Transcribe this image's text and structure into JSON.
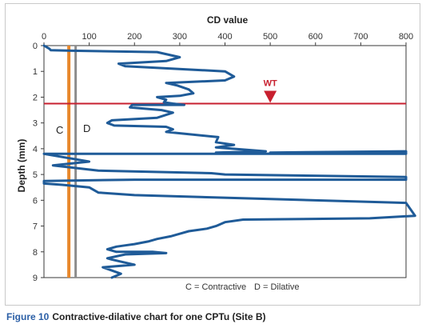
{
  "chart_data": {
    "type": "line",
    "title": "",
    "xlabel": "CD value",
    "ylabel": "Depth (mm)",
    "xlim": [
      0,
      800
    ],
    "ylim": [
      0,
      9
    ],
    "y_inverted": true,
    "x_axis_position": "top",
    "x_ticks": [
      "0",
      "100",
      "200",
      "300",
      "400",
      "500",
      "600",
      "700",
      "800"
    ],
    "y_ticks": [
      "0",
      "1",
      "2",
      "3",
      "4",
      "5",
      "6",
      "7",
      "8",
      "9"
    ],
    "grid": false,
    "series": [
      {
        "color": "#1f5b98",
        "x": [
          0,
          5,
          12,
          15,
          60,
          250,
          300,
          270,
          165,
          180,
          290,
          400,
          420,
          400,
          270,
          295,
          320,
          330,
          300,
          250,
          270,
          265,
          285,
          310,
          195,
          190,
          260,
          285,
          250,
          150,
          140,
          155,
          270,
          285,
          270,
          385,
          380,
          420,
          380,
          490,
          380,
          510,
          500,
          800,
          800,
          0,
          100,
          20,
          120,
          370,
          400,
          800,
          800,
          200,
          0,
          0,
          40,
          100,
          120,
          200,
          800,
          820,
          720,
          440,
          400,
          380,
          360,
          320,
          300,
          280,
          250,
          230,
          200,
          180,
          160,
          140,
          160,
          240,
          270,
          180,
          140,
          150,
          200,
          130,
          170,
          150
        ],
        "y": [
          0,
          0.05,
          0.12,
          0.18,
          0.2,
          0.25,
          0.45,
          0.6,
          0.7,
          0.8,
          0.9,
          1.0,
          1.2,
          1.35,
          1.45,
          1.55,
          1.7,
          1.85,
          1.95,
          2.0,
          2.1,
          2.2,
          2.25,
          2.3,
          2.3,
          2.4,
          2.5,
          2.6,
          2.8,
          2.9,
          3.0,
          3.1,
          3.15,
          3.25,
          3.35,
          3.55,
          3.75,
          3.85,
          3.95,
          4.1,
          4.15,
          4.2,
          4.15,
          4.1,
          4.2,
          4.2,
          4.5,
          4.65,
          4.85,
          4.95,
          5.0,
          5.1,
          5.2,
          5.2,
          5.25,
          5.35,
          5.4,
          5.5,
          5.7,
          5.8,
          6.1,
          6.6,
          6.7,
          6.75,
          6.85,
          7.0,
          7.1,
          7.2,
          7.3,
          7.4,
          7.5,
          7.6,
          7.7,
          7.75,
          7.8,
          7.9,
          8.0,
          8.0,
          8.05,
          8.1,
          8.25,
          8.3,
          8.5,
          8.6,
          8.85,
          9.0
        ]
      }
    ],
    "reference_lines": [
      {
        "orientation": "vertical",
        "x": 55,
        "color": "#e8872a"
      },
      {
        "orientation": "vertical",
        "x": 70,
        "color": "#8c8c8c"
      },
      {
        "orientation": "horizontal",
        "y": 2.25,
        "color": "#c8202f"
      }
    ],
    "annotations": {
      "wt": "WT",
      "wt_x": 500,
      "wt_y": 2.25,
      "zone_c": "C",
      "zone_d": "D",
      "legend_c": "C = Contractive",
      "legend_d": "D = Dilative"
    }
  },
  "caption": {
    "figure": "Figure 10",
    "text": "Contractive-dilative chart for one CPTu (Site B)"
  }
}
